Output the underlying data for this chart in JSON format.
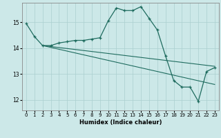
{
  "xlabel": "Humidex (Indice chaleur)",
  "background_color": "#cce8e8",
  "grid_color": "#aacfcf",
  "line_color": "#1e6b5e",
  "xlim": [
    -0.5,
    23.5
  ],
  "ylim": [
    11.6,
    15.75
  ],
  "yticks": [
    12,
    13,
    14,
    15
  ],
  "xticks": [
    0,
    1,
    2,
    3,
    4,
    5,
    6,
    7,
    8,
    9,
    10,
    11,
    12,
    13,
    14,
    15,
    16,
    17,
    18,
    19,
    20,
    21,
    22,
    23
  ],
  "lines": [
    {
      "x": [
        0,
        1,
        2,
        3,
        4,
        5,
        6,
        7,
        8,
        9,
        10,
        11,
        12,
        13,
        14,
        15,
        16,
        17,
        18,
        19,
        20,
        21,
        22,
        23
      ],
      "y": [
        14.95,
        14.45,
        14.1,
        14.1,
        14.2,
        14.25,
        14.3,
        14.3,
        14.35,
        14.4,
        15.05,
        15.55,
        15.45,
        15.45,
        15.6,
        15.15,
        14.7,
        13.7,
        12.75,
        12.5,
        12.5,
        11.95,
        13.1,
        13.25
      ],
      "marker": true
    },
    {
      "x": [
        2,
        23
      ],
      "y": [
        14.1,
        13.3
      ],
      "marker": false
    },
    {
      "x": [
        2,
        23
      ],
      "y": [
        14.1,
        12.6
      ],
      "marker": false
    }
  ]
}
